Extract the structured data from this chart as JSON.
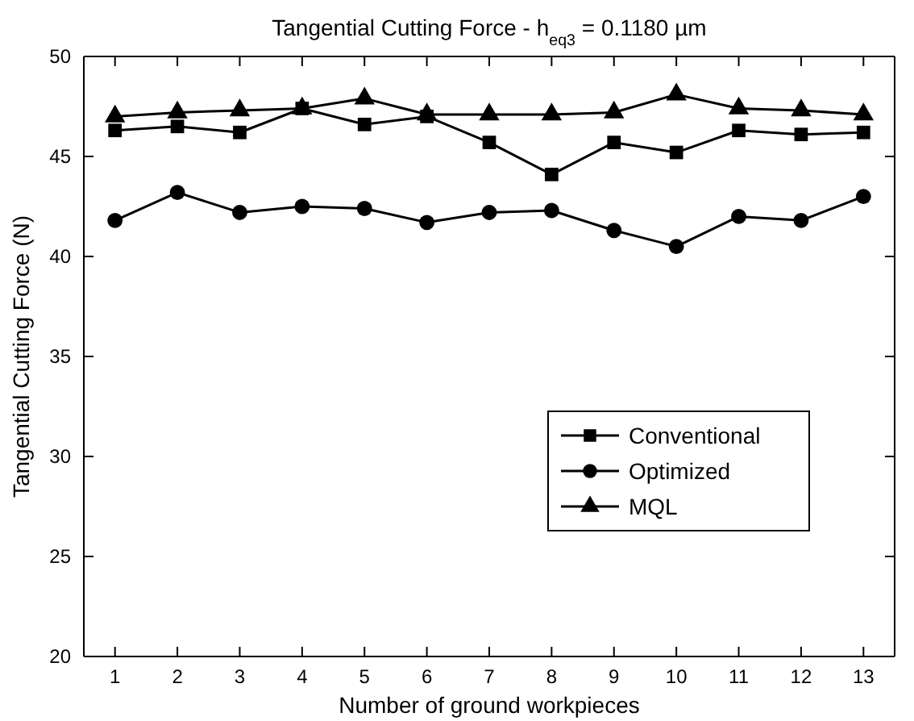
{
  "chart_data": {
    "type": "line",
    "title": "Tangential Cutting Force - h$_{eq3}$ = 0.1180 µm",
    "xlabel": "Number of ground workpieces",
    "ylabel": "Tangential Cutting Force (N)",
    "x": [
      1,
      2,
      3,
      4,
      5,
      6,
      7,
      8,
      9,
      10,
      11,
      12,
      13
    ],
    "series": [
      {
        "name": "Conventional",
        "color": "#000000",
        "marker": "square",
        "values": [
          46.3,
          46.5,
          46.2,
          47.4,
          46.6,
          47.0,
          45.7,
          44.1,
          45.7,
          45.2,
          46.3,
          46.1,
          46.2
        ]
      },
      {
        "name": "Optimized",
        "color": "#000000",
        "marker": "circle",
        "values": [
          41.8,
          43.2,
          42.2,
          42.5,
          42.4,
          41.7,
          42.2,
          42.3,
          41.3,
          40.5,
          42.0,
          41.8,
          43.0
        ]
      },
      {
        "name": "MQL",
        "color": "#000000",
        "marker": "triangle",
        "values": [
          47.0,
          47.2,
          47.3,
          47.4,
          47.9,
          47.1,
          47.1,
          47.1,
          47.2,
          48.1,
          47.4,
          47.3,
          47.1
        ]
      }
    ],
    "xlim": [
      0.5,
      13.5
    ],
    "xticks": [
      1,
      2,
      3,
      4,
      5,
      6,
      7,
      8,
      9,
      10,
      11,
      12,
      13
    ],
    "ylim": [
      20,
      50
    ],
    "yticks": [
      20,
      25,
      30,
      35,
      40,
      45,
      50
    ],
    "legend": "right",
    "line_style": "solid"
  }
}
